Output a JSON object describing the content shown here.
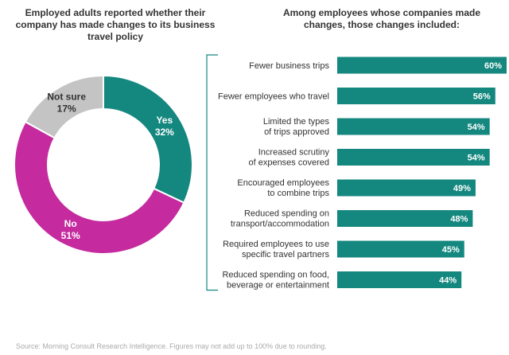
{
  "chart_data": [
    {
      "type": "pie",
      "title": "Employed adults reported whether their company has made changes to its business travel policy",
      "categories": [
        "Yes",
        "No",
        "Not sure"
      ],
      "values": [
        32,
        51,
        17
      ],
      "value_labels": [
        "32%",
        "51%",
        "17%"
      ],
      "colors": [
        "#14877f",
        "#c52a9e",
        "#c4c4c4"
      ],
      "legend": "none"
    },
    {
      "type": "bar",
      "orientation": "horizontal",
      "title": "Among employees whose companies made changes, those changes included:",
      "categories": [
        [
          "Fewer business trips"
        ],
        [
          "Fewer employees who travel"
        ],
        [
          "Limited the types",
          "of trips approved"
        ],
        [
          "Increased scrutiny",
          "of expenses covered"
        ],
        [
          "Encouraged employees",
          "to combine trips"
        ],
        [
          "Reduced spending on",
          "transport/accommodation"
        ],
        [
          "Required employees to use",
          "specific travel partners"
        ],
        [
          "Reduced spending on food,",
          "beverage or entertainment"
        ]
      ],
      "values": [
        60,
        56,
        54,
        54,
        49,
        48,
        45,
        44
      ],
      "value_labels": [
        "60%",
        "56%",
        "54%",
        "54%",
        "49%",
        "48%",
        "45%",
        "44%"
      ],
      "xlim": [
        0,
        60
      ],
      "bar_color": "#14877f",
      "grid": false
    }
  ],
  "source": "Source: Morning Consult Research Intelligence. Figures may not add up to 100% due to rounding."
}
